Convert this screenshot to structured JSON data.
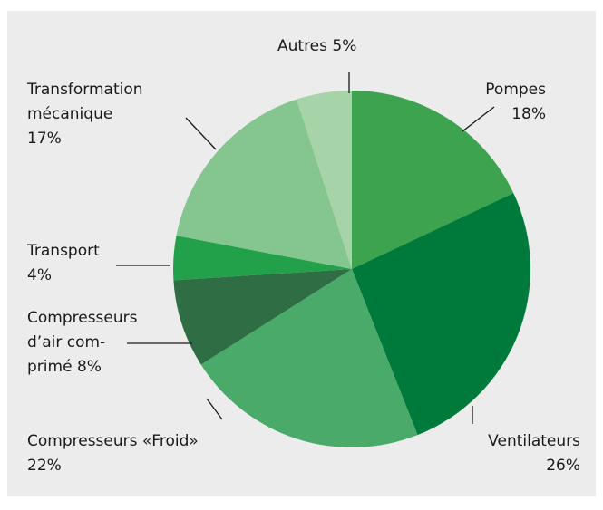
{
  "chart_data": {
    "type": "pie",
    "categories": [
      "Pompes",
      "Ventilateurs",
      "Compresseurs «Froid»",
      "Compresseurs\nd’air com-\nprimé",
      "Transport",
      "Transformation\nmécanique",
      "Autres"
    ],
    "values": [
      18,
      26,
      22,
      8,
      4,
      17,
      5
    ],
    "value_labels": [
      "18%",
      "26%",
      "22%",
      "8%",
      "4%",
      "17%",
      "5%"
    ],
    "colors": [
      "#3ea34e",
      "#007a3a",
      "#4aaa6a",
      "#2f6e44",
      "#22a04a",
      "#85c58f",
      "#a6d4a8"
    ]
  }
}
